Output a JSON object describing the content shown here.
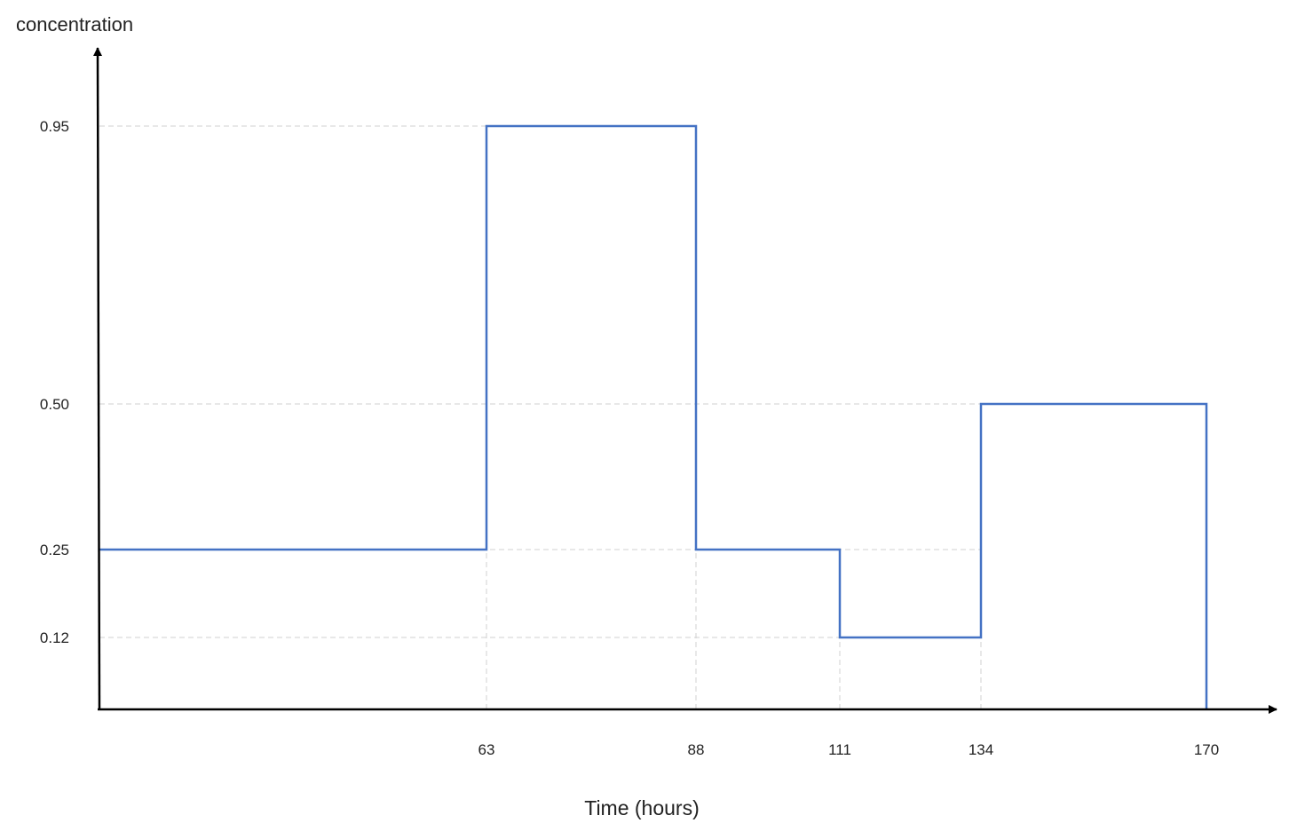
{
  "chart_data": {
    "type": "line",
    "step": true,
    "title": "",
    "xlabel": "Time (hours)",
    "ylabel": "concentration",
    "x_ticks": [
      "63",
      "88",
      "111",
      "134",
      "170"
    ],
    "y_ticks": [
      "0.95",
      "0.50",
      "0.25",
      "0.12"
    ],
    "xlim": [
      0,
      180
    ],
    "ylim": [
      0,
      1.0
    ],
    "grid": "dashed guide lines at step levels and step times",
    "series": [
      {
        "color": "#4472c4",
        "segments": [
          {
            "x_start": 0,
            "x_end": 63,
            "y": 0.25
          },
          {
            "x_start": 63,
            "x_end": 88,
            "y": 0.95
          },
          {
            "x_start": 88,
            "x_end": 111,
            "y": 0.25
          },
          {
            "x_start": 111,
            "x_end": 134,
            "y": 0.12
          },
          {
            "x_start": 134,
            "x_end": 170,
            "y": 0.5
          }
        ],
        "end_drop_to": 0
      }
    ]
  },
  "colors": {
    "line": "#4472c4",
    "axis": "#000000",
    "guide": "#d0d0d0"
  }
}
